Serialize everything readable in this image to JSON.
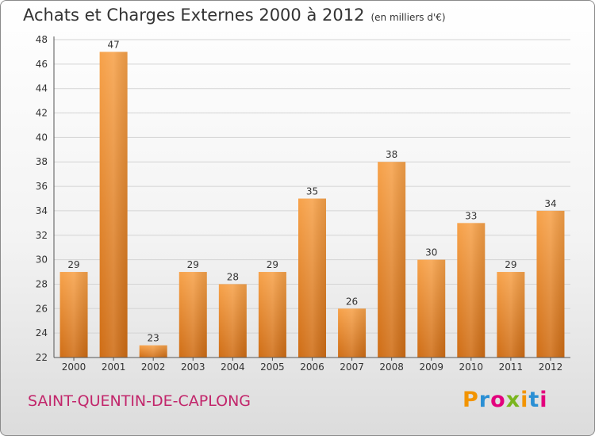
{
  "chart_data": {
    "type": "bar",
    "title": "Achats et Charges Externes 2000 à 2012",
    "subtitle": "(en milliers d'€)",
    "categories": [
      "2000",
      "2001",
      "2002",
      "2003",
      "2004",
      "2005",
      "2006",
      "2007",
      "2008",
      "2009",
      "2010",
      "2011",
      "2012"
    ],
    "values": [
      29,
      47,
      23,
      29,
      28,
      29,
      35,
      26,
      38,
      30,
      33,
      29,
      34
    ],
    "ylim": [
      22,
      48
    ],
    "yticks": [
      22,
      24,
      26,
      28,
      30,
      32,
      34,
      36,
      38,
      40,
      42,
      44,
      46,
      48
    ],
    "xlabel": "",
    "ylabel": "",
    "grid": true,
    "bar_color": "#f0922f",
    "bar_color_dark": "#cf6d15"
  },
  "footer": {
    "place_name": "SAINT-QUENTIN-DE-CAPLONG",
    "logo_text": "Proxiti",
    "logo_colors": [
      "#f29400",
      "#2a8fd4",
      "#e3007d",
      "#7ab51d",
      "#f29400",
      "#2a8fd4",
      "#e3007d"
    ]
  }
}
